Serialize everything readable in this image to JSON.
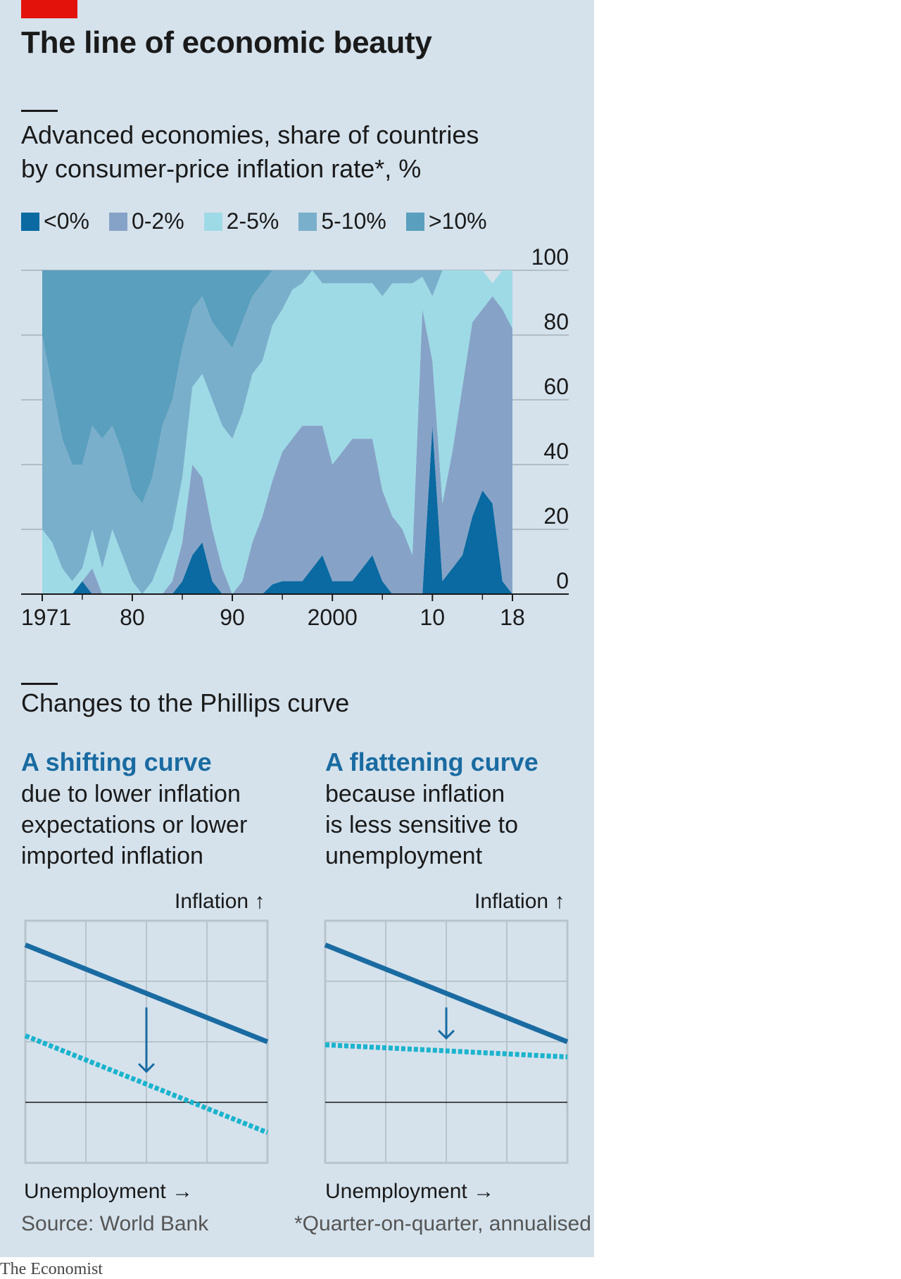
{
  "title": "The line of economic beauty",
  "subtitle_line1": "Advanced economies, share of countries",
  "subtitle_line2": "by consumer-price inflation rate*, %",
  "colors": {
    "panel": "#d5e2ec",
    "brand_red": "#e3120b",
    "lt0": "#0a6aa1",
    "b0_2": "#86a3c7",
    "b2_5": "#9edae6",
    "b5_10": "#7aafcb",
    "gt10": "#5a9fbd",
    "dark_line": "#1a6ba1",
    "dashed_line": "#1bb3cd"
  },
  "chart_data": [
    {
      "type": "area",
      "stacked": true,
      "ylim": [
        0,
        100
      ],
      "yticks": [
        "0",
        "20",
        "40",
        "60",
        "80",
        "100"
      ],
      "xticks": [
        "1971",
        "80",
        "90",
        "2000",
        "10",
        "18"
      ],
      "xlim": [
        1971,
        2018
      ],
      "legend_position": "top",
      "x": [
        1971,
        1972,
        1973,
        1974,
        1975,
        1976,
        1977,
        1978,
        1979,
        1980,
        1981,
        1982,
        1983,
        1984,
        1985,
        1986,
        1987,
        1988,
        1989,
        1990,
        1991,
        1992,
        1993,
        1994,
        1995,
        1996,
        1997,
        1998,
        1999,
        2000,
        2001,
        2002,
        2003,
        2004,
        2005,
        2006,
        2007,
        2008,
        2009,
        2010,
        2011,
        2012,
        2013,
        2014,
        2015,
        2016,
        2017,
        2018
      ],
      "series": [
        {
          "name": "<0%",
          "key": "lt0",
          "values": [
            0,
            0,
            0,
            0,
            4,
            0,
            0,
            0,
            0,
            0,
            0,
            0,
            0,
            0,
            4,
            12,
            16,
            4,
            0,
            0,
            0,
            0,
            0,
            3,
            4,
            4,
            4,
            8,
            12,
            4,
            4,
            4,
            8,
            12,
            4,
            0,
            0,
            0,
            0,
            52,
            4,
            8,
            12,
            24,
            32,
            28,
            4,
            0
          ]
        },
        {
          "name": "0-2%",
          "key": "b0_2",
          "values": [
            0,
            0,
            0,
            0,
            0,
            8,
            0,
            0,
            0,
            0,
            0,
            0,
            0,
            4,
            12,
            28,
            20,
            16,
            8,
            0,
            4,
            16,
            24,
            32,
            40,
            44,
            48,
            44,
            40,
            36,
            40,
            44,
            40,
            36,
            28,
            24,
            20,
            12,
            88,
            20,
            24,
            36,
            52,
            60,
            56,
            64,
            84,
            82
          ]
        },
        {
          "name": "2-5%",
          "key": "b2_5",
          "values": [
            20,
            16,
            8,
            4,
            4,
            12,
            8,
            20,
            12,
            4,
            0,
            4,
            12,
            16,
            20,
            24,
            32,
            40,
            44,
            48,
            52,
            52,
            48,
            48,
            44,
            46,
            44,
            48,
            44,
            56,
            52,
            48,
            48,
            48,
            60,
            72,
            76,
            84,
            10,
            20,
            72,
            56,
            36,
            16,
            12,
            4,
            12,
            18
          ]
        },
        {
          "name": "5-10%",
          "key": "b5_10",
          "values": [
            60,
            48,
            40,
            36,
            32,
            32,
            40,
            32,
            32,
            28,
            28,
            32,
            40,
            40,
            40,
            24,
            24,
            24,
            28,
            28,
            28,
            24,
            24,
            17,
            12,
            6,
            4,
            0,
            4,
            4,
            4,
            4,
            4,
            4,
            8,
            4,
            4,
            4,
            2,
            8,
            0,
            0,
            0,
            0,
            0,
            0,
            0,
            0
          ]
        },
        {
          "name": ">10%",
          "key": "gt10",
          "values": [
            20,
            36,
            52,
            60,
            60,
            48,
            52,
            48,
            56,
            68,
            72,
            64,
            48,
            40,
            24,
            12,
            8,
            16,
            20,
            24,
            16,
            8,
            4,
            0,
            0,
            0,
            0,
            0,
            0,
            0,
            0,
            0,
            0,
            0,
            0,
            0,
            0,
            0,
            0,
            0,
            0,
            0,
            0,
            0,
            0,
            0,
            0,
            0
          ]
        }
      ]
    },
    {
      "type": "line",
      "title": "A shifting curve",
      "xlabel": "Unemployment →",
      "ylabel": "Inflation ↑",
      "xlim": [
        0,
        4
      ],
      "ylim": [
        0,
        4
      ],
      "series": [
        {
          "style": "solid",
          "x": [
            0,
            4
          ],
          "y": [
            3.6,
            2.0
          ]
        },
        {
          "style": "dashed",
          "x": [
            0,
            4
          ],
          "y": [
            2.1,
            0.5
          ]
        }
      ],
      "baseline": 1.0,
      "arrow": "down"
    },
    {
      "type": "line",
      "title": "A flattening curve",
      "xlabel": "Unemployment →",
      "ylabel": "Inflation ↑",
      "xlim": [
        0,
        4
      ],
      "ylim": [
        0,
        4
      ],
      "series": [
        {
          "style": "solid",
          "x": [
            0,
            4
          ],
          "y": [
            3.6,
            2.0
          ]
        },
        {
          "style": "dashed",
          "x": [
            0,
            4
          ],
          "y": [
            1.95,
            1.75
          ]
        }
      ],
      "baseline": 1.0,
      "arrow": "down"
    }
  ],
  "section_title": "Changes to the Phillips curve",
  "left": {
    "head": "A shifting curve",
    "desc1": "due to lower inflation",
    "desc2": "expectations or lower",
    "desc3": "imported inflation",
    "ylabel": "Inflation ↑",
    "xlabel": "Unemployment →"
  },
  "right": {
    "head": "A flattening curve",
    "desc1": "because inflation",
    "desc2": "is less sensitive to",
    "desc3": "unemployment",
    "ylabel": "Inflation ↑",
    "xlabel": "Unemployment →"
  },
  "source": "Source: World Bank",
  "footnote": "*Quarter-on-quarter, annualised",
  "brand": "The Economist"
}
